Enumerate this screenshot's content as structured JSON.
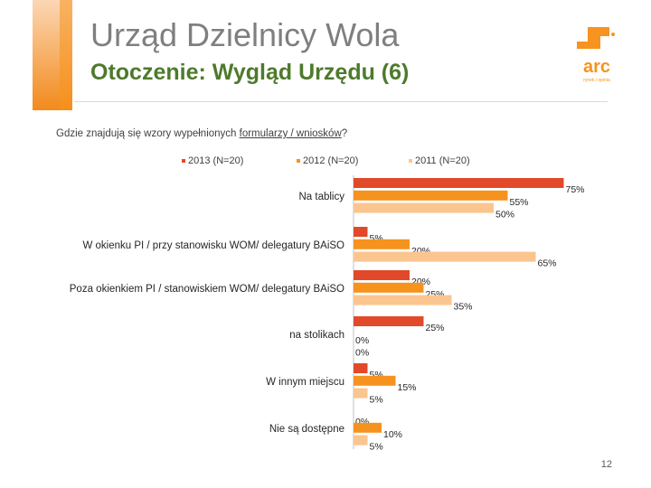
{
  "header": {
    "title": "Urząd Dzielnicy Wola",
    "subtitle": "Otoczenie: Wygląd Urzędu (6)"
  },
  "logo": {
    "name": "arc",
    "tagline": "rynek i opinia"
  },
  "question": {
    "prefix": "Gdzie znajdują się wzory wypełnionych ",
    "underlined": "formularzy / wniosków",
    "suffix": "?"
  },
  "colors": {
    "s2013": "#e2492a",
    "s2012": "#f6931f",
    "s2011": "#fbc58f",
    "brand": "#f7931e",
    "title_gray": "#7f7f7f",
    "subtitle_green": "#4e7a2c"
  },
  "chart_data": {
    "type": "bar",
    "orientation": "horizontal",
    "xlim": [
      0,
      100
    ],
    "categories": [
      "Na tablicy",
      "W okienku PI / przy stanowisku WOM/ delegatury BAiSO",
      "Poza okienkiem PI / stanowiskiem WOM/ delegatury BAiSO",
      "na stolikach",
      "W innym miejscu",
      "Nie są dostępne"
    ],
    "series": [
      {
        "name": "2013 (N=20)",
        "values": [
          75,
          5,
          20,
          25,
          5,
          0
        ],
        "labels": [
          "75%",
          "5%",
          "20%",
          "25%",
          "5%",
          "0%"
        ]
      },
      {
        "name": "2012 (N=20)",
        "values": [
          55,
          20,
          25,
          0,
          15,
          10
        ],
        "labels": [
          "55%",
          "20%",
          "25%",
          "0%",
          "15%",
          "10%"
        ]
      },
      {
        "name": "2011 (N=20)",
        "values": [
          50,
          65,
          35,
          0,
          5,
          5
        ],
        "labels": [
          "50%",
          "65%",
          "35%",
          "0%",
          "5%",
          "5%"
        ]
      }
    ],
    "legend_position": "top"
  },
  "page_number": "12"
}
